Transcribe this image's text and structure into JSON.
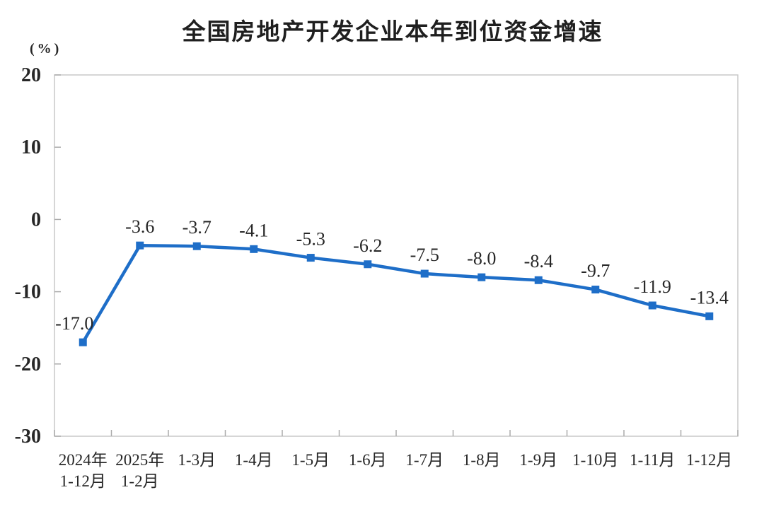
{
  "chart_data": {
    "type": "line",
    "title": "全国房地产开发企业本年到位资金增速",
    "unit_label": "(%)",
    "categories": [
      [
        "2024年",
        "1-12月"
      ],
      [
        "2025年",
        "1-2月"
      ],
      [
        "1-3月"
      ],
      [
        "1-4月"
      ],
      [
        "1-5月"
      ],
      [
        "1-6月"
      ],
      [
        "1-7月"
      ],
      [
        "1-8月"
      ],
      [
        "1-9月"
      ],
      [
        "1-10月"
      ],
      [
        "1-11月"
      ],
      [
        "1-12月"
      ]
    ],
    "values": [
      -17.0,
      -3.6,
      -3.7,
      -4.1,
      -5.3,
      -6.2,
      -7.5,
      -8.0,
      -8.4,
      -9.7,
      -11.9,
      -13.4
    ],
    "data_labels": [
      "-17.0",
      "-3.6",
      "-3.7",
      "-4.1",
      "-5.3",
      "-6.2",
      "-7.5",
      "-8.0",
      "-8.4",
      "-9.7",
      "-11.9",
      "-13.4"
    ],
    "series_name": "本年到位资金增速",
    "xlabel": "",
    "ylabel": "(%)",
    "ylim": [
      -30,
      20
    ],
    "yticks": [
      20,
      10,
      0,
      -10,
      -20,
      -30
    ],
    "grid": false,
    "legend_position": "none",
    "marker": "square",
    "colors": {
      "line": "#1E6EC8",
      "plot_border": "#C9C9C9",
      "tick": "#ABABAB",
      "text": "#262626",
      "title_text": "#1F1F1F",
      "background": "#FFFFFF"
    }
  }
}
